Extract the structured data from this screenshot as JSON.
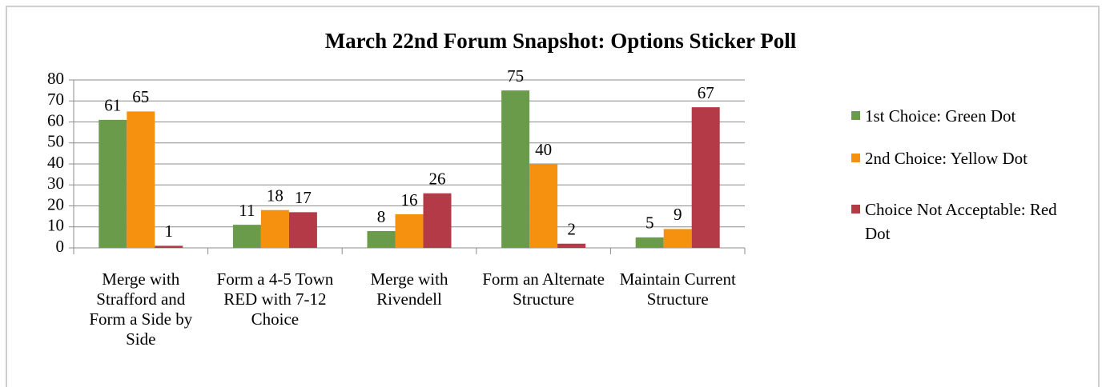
{
  "chart_data": {
    "type": "bar",
    "title": "March 22nd Forum Snapshot: Options Sticker Poll",
    "categories": [
      "Merge with Strafford and Form a Side by Side",
      "Form a 4-5 Town RED with 7-12 Choice",
      "Merge with Rivendell",
      "Form an Alternate Structure",
      "Maintain Current Structure"
    ],
    "series": [
      {
        "name": "1st Choice: Green Dot",
        "color": "#699b4b",
        "values": [
          61,
          11,
          8,
          75,
          5
        ]
      },
      {
        "name": "2nd Choice: Yellow Dot",
        "color": "#f6900f",
        "values": [
          65,
          18,
          16,
          40,
          9
        ]
      },
      {
        "name": "Choice Not Acceptable: Red Dot",
        "color": "#b33a46",
        "values": [
          1,
          17,
          26,
          2,
          67
        ]
      }
    ],
    "ylim": [
      0,
      80
    ],
    "yticks": [
      0,
      10,
      20,
      30,
      40,
      50,
      60,
      70,
      80
    ],
    "grid": true,
    "legend": "right"
  }
}
